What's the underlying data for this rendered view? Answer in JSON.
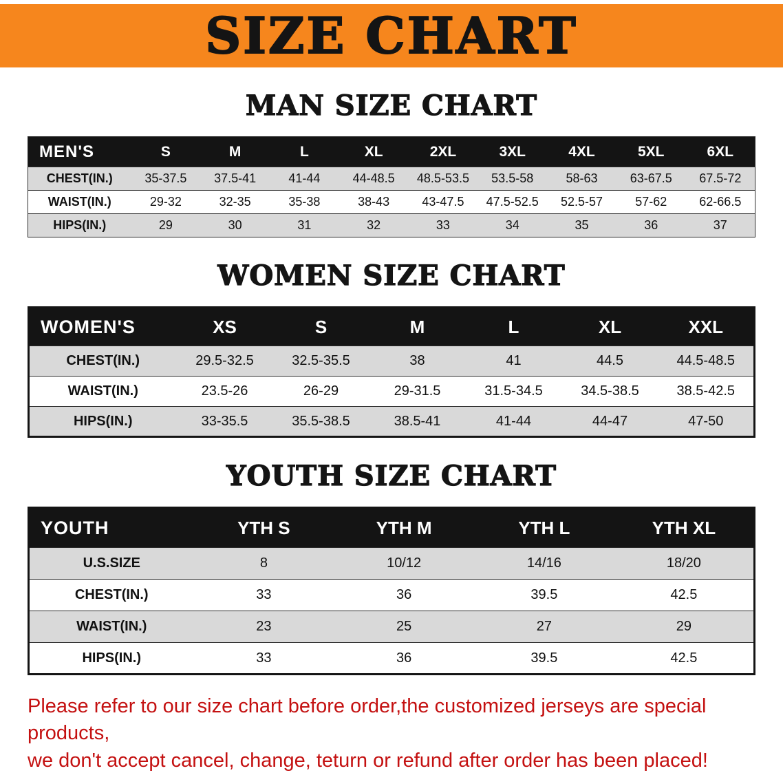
{
  "banner": {
    "title": "SIZE CHART"
  },
  "colors": {
    "banner_bg": "#f6861d",
    "table_header_bg": "#141414",
    "row_stripe": "#d9d9d9",
    "disclaimer_text": "#c41111"
  },
  "sections": [
    {
      "id": "men",
      "heading": "MAN SIZE CHART",
      "table": {
        "header": [
          "MEN'S",
          "S",
          "M",
          "L",
          "XL",
          "2XL",
          "3XL",
          "4XL",
          "5XL",
          "6XL"
        ],
        "rows": [
          [
            "CHEST(IN.)",
            "35-37.5",
            "37.5-41",
            "41-44",
            "44-48.5",
            "48.5-53.5",
            "53.5-58",
            "58-63",
            "63-67.5",
            "67.5-72"
          ],
          [
            "WAIST(IN.)",
            "29-32",
            "32-35",
            "35-38",
            "38-43",
            "43-47.5",
            "47.5-52.5",
            "52.5-57",
            "57-62",
            "62-66.5"
          ],
          [
            "HIPS(IN.)",
            "29",
            "30",
            "31",
            "32",
            "33",
            "34",
            "35",
            "36",
            "37"
          ]
        ]
      }
    },
    {
      "id": "women",
      "heading": "WOMEN SIZE CHART",
      "table": {
        "header": [
          "WOMEN'S",
          "XS",
          "S",
          "M",
          "L",
          "XL",
          "XXL"
        ],
        "rows": [
          [
            "CHEST(IN.)",
            "29.5-32.5",
            "32.5-35.5",
            "38",
            "41",
            "44.5",
            "44.5-48.5"
          ],
          [
            "WAIST(IN.)",
            "23.5-26",
            "26-29",
            "29-31.5",
            "31.5-34.5",
            "34.5-38.5",
            "38.5-42.5"
          ],
          [
            "HIPS(IN.)",
            "33-35.5",
            "35.5-38.5",
            "38.5-41",
            "41-44",
            "44-47",
            "47-50"
          ]
        ]
      }
    },
    {
      "id": "youth",
      "heading": "YOUTH SIZE CHART",
      "table": {
        "header": [
          "YOUTH",
          "YTH S",
          "YTH M",
          "YTH L",
          "YTH XL"
        ],
        "rows": [
          [
            "U.S.SIZE",
            "8",
            "10/12",
            "14/16",
            "18/20"
          ],
          [
            "CHEST(IN.)",
            "33",
            "36",
            "39.5",
            "42.5"
          ],
          [
            "WAIST(IN.)",
            "23",
            "25",
            "27",
            "29"
          ],
          [
            "HIPS(IN.)",
            "33",
            "36",
            "39.5",
            "42.5"
          ]
        ]
      }
    }
  ],
  "disclaimer": {
    "line1": "Please refer to our size chart before order,the customized jerseys are special products,",
    "line2": "we don't accept cancel, change, teturn or refund after order has been placed!"
  }
}
